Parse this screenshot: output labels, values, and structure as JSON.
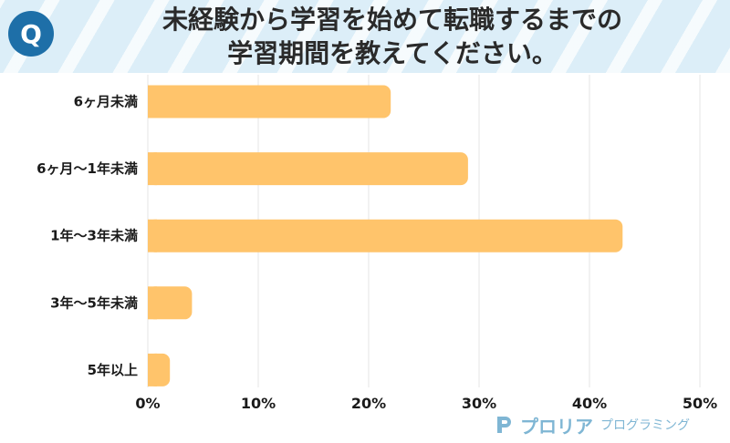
{
  "header": {
    "badge": "Q",
    "title_line1": "未経験から学習を始めて転職するまでの",
    "title_line2": "学習期間を教えてください。"
  },
  "colors": {
    "bar": "#ffc46b",
    "badge": "#1e6fa8",
    "header_bg": "#dceef8",
    "grid": "#e4e4e4",
    "logo": "#7fb6d4"
  },
  "footer": {
    "logo_name": "プロリア",
    "logo_sub": "プログラミング",
    "logo_icon": "proria-logo-icon"
  },
  "chart_data": {
    "type": "bar",
    "orientation": "horizontal",
    "categories": [
      "6ヶ月未満",
      "6ヶ月～1年未満",
      "1年～3年未満",
      "3年～5年未満",
      "5年以上"
    ],
    "values": [
      22,
      29,
      43,
      4,
      2
    ],
    "unit": "%",
    "xlim": [
      0,
      50
    ],
    "xticks": [
      0,
      10,
      20,
      30,
      40,
      50
    ],
    "xtick_labels": [
      "0%",
      "10%",
      "20%",
      "30%",
      "40%",
      "50%"
    ],
    "grid": true,
    "title": "未経験から学習を始めて転職するまでの学習期間を教えてください。",
    "xlabel": "",
    "ylabel": ""
  }
}
